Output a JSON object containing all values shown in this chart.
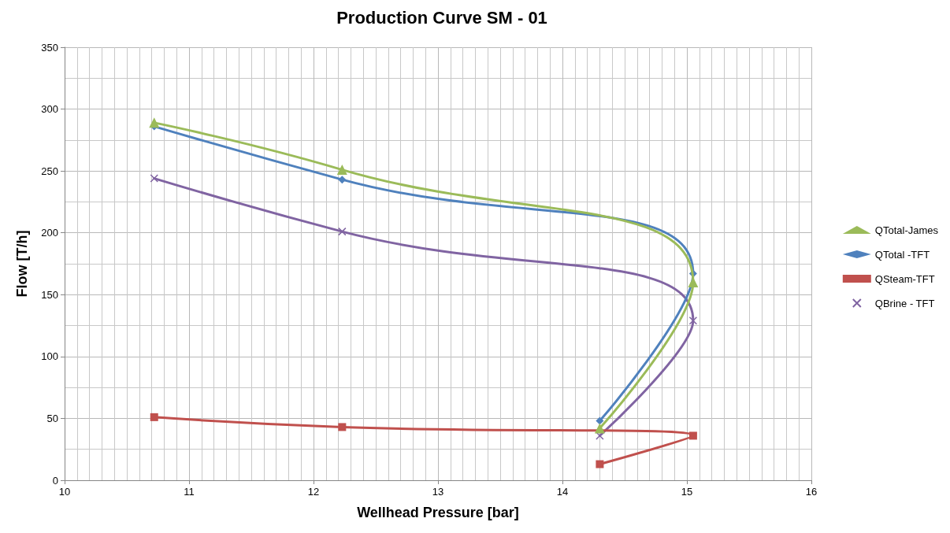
{
  "chart_data": {
    "type": "line",
    "title": "Production Curve SM - 01",
    "xlabel": "Wellhead Pressure [bar]",
    "ylabel": "Flow [T/h]",
    "xlim": [
      10,
      16
    ],
    "xticks": [
      10,
      11,
      12,
      13,
      14,
      15,
      16
    ],
    "ylim": [
      0,
      350
    ],
    "yticks": [
      0,
      50,
      100,
      150,
      200,
      250,
      300,
      350
    ],
    "grid": true,
    "legend": "right",
    "line_style": "solid",
    "series": [
      {
        "name": "QTotal-James",
        "color": "#9bbb59",
        "marker": "triangle",
        "x": [
          10.72,
          12.23,
          15.05,
          14.3
        ],
        "values": [
          289,
          251,
          160,
          42
        ]
      },
      {
        "name": "QTotal -TFT",
        "color": "#4f81bd",
        "marker": "diamond",
        "x": [
          10.72,
          12.23,
          15.05,
          14.3
        ],
        "values": [
          286,
          243,
          167,
          48
        ]
      },
      {
        "name": "QSteam-TFT",
        "color": "#c0504d",
        "marker": "square",
        "x": [
          10.72,
          12.23,
          15.05,
          14.3
        ],
        "values": [
          51,
          43,
          36,
          13
        ]
      },
      {
        "name": "QBrine - TFT",
        "color": "#8064a2",
        "marker": "cross",
        "x": [
          10.72,
          12.23,
          15.05,
          14.3
        ],
        "values": [
          244,
          201,
          129,
          36
        ]
      }
    ]
  }
}
